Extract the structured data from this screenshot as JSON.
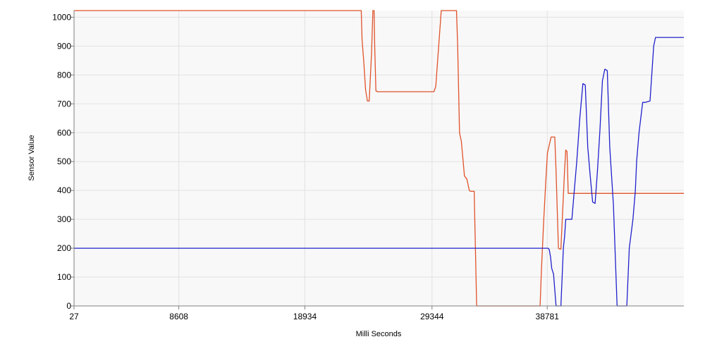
{
  "chart_data": {
    "type": "line",
    "title": "",
    "xlabel": "Milli Seconds",
    "ylabel": "Sensor Value",
    "x_tick_labels": [
      "27",
      "8608",
      "18934",
      "29344",
      "38781"
    ],
    "x_ticks": [
      27,
      8608,
      18934,
      29344,
      38781
    ],
    "xlim": [
      27,
      49970
    ],
    "ylim": [
      0,
      1023
    ],
    "y_ticks": [
      0,
      100,
      200,
      300,
      400,
      500,
      600,
      700,
      800,
      900,
      1000
    ],
    "y_tick_labels": [
      "0",
      "100",
      "200",
      "300",
      "400",
      "500",
      "600",
      "700",
      "800",
      "900",
      "1000"
    ],
    "grid": true,
    "legend": "none",
    "plot_background": "#f8f8f8",
    "series": [
      {
        "color": "#e0522a",
        "x": [
          27,
          23550,
          23620,
          23750,
          23900,
          24050,
          24200,
          24400,
          24500,
          24600,
          24650,
          24750,
          24900,
          25000,
          25200,
          29500,
          29650,
          30100,
          30150,
          30400,
          30600,
          31350,
          31450,
          31600,
          31750,
          32000,
          32200,
          32400,
          32500,
          32600,
          32700,
          32800,
          33000,
          33600,
          33800,
          38200,
          38300,
          38500,
          38700,
          38800,
          39100,
          39400,
          39500,
          39700,
          39800,
          39900,
          40200,
          40300,
          40400,
          40500,
          49970
        ],
        "y": [
          1023,
          1023,
          920,
          850,
          750,
          710,
          710,
          880,
          1023,
          1023,
          900,
          745,
          742,
          742,
          742,
          742,
          760,
          1023,
          1023,
          1023,
          1023,
          1023,
          900,
          600,
          570,
          450,
          440,
          400,
          397,
          397,
          397,
          397,
          0,
          0,
          0,
          0,
          120,
          300,
          460,
          530,
          585,
          585,
          470,
          200,
          197,
          197,
          470,
          540,
          535,
          390,
          390
        ]
      },
      {
        "color": "#2020cc",
        "x": [
          27,
          38700,
          38850,
          38950,
          39050,
          39150,
          39300,
          39500,
          39700,
          39900,
          40100,
          40200,
          40300,
          40800,
          41000,
          41200,
          41450,
          41700,
          41900,
          42100,
          42300,
          42500,
          42700,
          42900,
          43100,
          43300,
          43500,
          43700,
          43900,
          44200,
          44500,
          44900,
          45300,
          45500,
          45800,
          46000,
          46100,
          46300,
          46600,
          46800,
          47200,
          47500,
          47650,
          47800,
          48100,
          49970
        ],
        "y": [
          200,
          200,
          200,
          195,
          170,
          130,
          110,
          0,
          0,
          0,
          200,
          240,
          300,
          300,
          400,
          500,
          650,
          770,
          765,
          550,
          450,
          360,
          355,
          470,
          610,
          780,
          820,
          815,
          550,
          350,
          0,
          0,
          0,
          200,
          300,
          400,
          500,
          600,
          705,
          705,
          710,
          900,
          930,
          930,
          930,
          930
        ]
      }
    ]
  }
}
